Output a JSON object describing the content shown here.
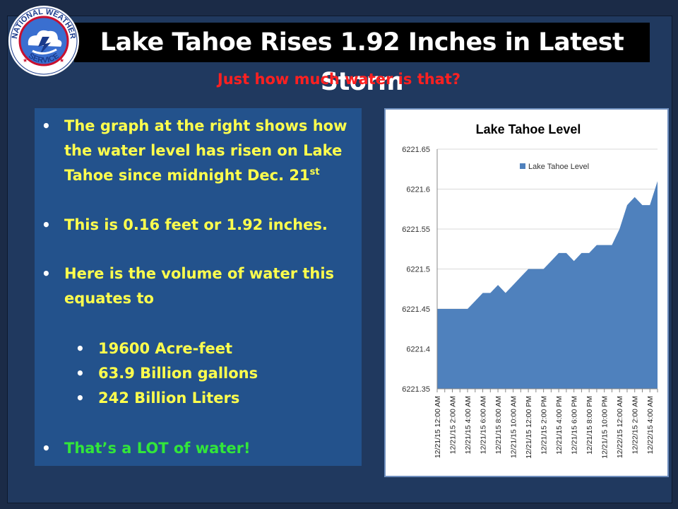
{
  "title": "Lake Tahoe Rises 1.92 Inches in Latest Storm",
  "subtitle": "Just how much water is that?",
  "logo": {
    "text_top": "NATIONAL WEATHER",
    "text_bottom": "SERVICE",
    "icon": "nws-logo-icon"
  },
  "bullets": {
    "b1_line1": "The graph at the right shows how",
    "b1_line2": "the water level has risen on Lake",
    "b1_line3": "Tahoe since midnight Dec. 21",
    "b1_sup": "st",
    "b2": "This is 0.16 feet or 1.92 inches.",
    "b3_line1": "Here is the volume of water this",
    "b3_line2": "equates to",
    "sub1": "19600 Acre-feet",
    "sub2": "63.9 Billion gallons",
    "sub3": "242 Billion Liters",
    "b4": "That’s a LOT of water!"
  },
  "colors": {
    "background": "#1b2b47",
    "panel": "#23528c",
    "bullet_text": "#ffff4d",
    "highlight_text": "#32e63a",
    "subtitle": "#ff2020",
    "area_fill": "#4f81bd"
  },
  "chart_data": {
    "type": "area",
    "title": "Lake Tahoe Level",
    "series": [
      {
        "name": "Lake Tahoe Level",
        "values": [
          6221.45,
          6221.45,
          6221.45,
          6221.45,
          6221.45,
          6221.46,
          6221.47,
          6221.47,
          6221.48,
          6221.47,
          6221.48,
          6221.49,
          6221.5,
          6221.5,
          6221.5,
          6221.51,
          6221.52,
          6221.52,
          6221.51,
          6221.52,
          6221.52,
          6221.53,
          6221.53,
          6221.53,
          6221.55,
          6221.58,
          6221.59,
          6221.58,
          6221.58,
          6221.61
        ]
      }
    ],
    "x_tick_labels": [
      "12/21/15 12:00 AM",
      "12/21/15 2:00 AM",
      "12/21/15 4:00 AM",
      "12/21/15 6:00 AM",
      "12/21/15 8:00 AM",
      "12/21/15 10:00 AM",
      "12/21/15 12:00 PM",
      "12/21/15 2:00 PM",
      "12/21/15 4:00 PM",
      "12/21/15 6:00 PM",
      "12/21/15 8:00 PM",
      "12/21/15 10:00 PM",
      "12/22/15 12:00 AM",
      "12/22/15 2:00 AM",
      "12/22/15 4:00 AM"
    ],
    "y_ticks": [
      6221.35,
      6221.4,
      6221.45,
      6221.5,
      6221.55,
      6221.6,
      6221.65
    ],
    "y_tick_labels": [
      "6221.35",
      "6221.4",
      "6221.45",
      "6221.5",
      "6221.55",
      "6221.6",
      "6221.65"
    ],
    "ylim": [
      6221.35,
      6221.65
    ],
    "xlabel": "",
    "ylabel": "",
    "legend_position": "top-right",
    "grid": true
  }
}
